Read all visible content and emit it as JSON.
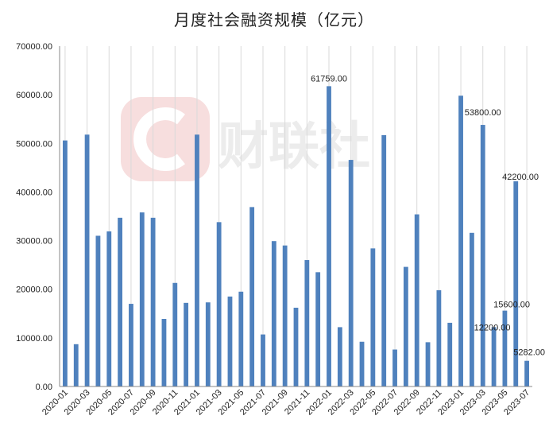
{
  "chart_data": {
    "type": "bar",
    "title": "月度社会融资规模（亿元）",
    "xlabel": "",
    "ylabel": "",
    "ylim": [
      0,
      70000
    ],
    "yticks": [
      "0.00",
      "10000.00",
      "20000.00",
      "30000.00",
      "40000.00",
      "50000.00",
      "60000.00",
      "70000.00"
    ],
    "grid": "vertical",
    "legend": "none",
    "bar_color": "#4f81bd",
    "watermark": "财联社",
    "categories": [
      "2020-01",
      "2020-02",
      "2020-03",
      "2020-04",
      "2020-05",
      "2020-06",
      "2020-07",
      "2020-08",
      "2020-09",
      "2020-10",
      "2020-11",
      "2020-12",
      "2021-01",
      "2021-02",
      "2021-03",
      "2021-04",
      "2021-05",
      "2021-06",
      "2021-07",
      "2021-08",
      "2021-09",
      "2021-10",
      "2021-11",
      "2021-12",
      "2022-01",
      "2022-02",
      "2022-03",
      "2022-04",
      "2022-05",
      "2022-06",
      "2022-07",
      "2022-08",
      "2022-09",
      "2022-10",
      "2022-11",
      "2022-12",
      "2023-01",
      "2023-02",
      "2023-03",
      "2023-04",
      "2023-05",
      "2023-06",
      "2023-07"
    ],
    "xtick_labels": [
      "2020-01",
      "2020-03",
      "2020-05",
      "2020-07",
      "2020-09",
      "2020-11",
      "2021-01",
      "2021-03",
      "2021-05",
      "2021-07",
      "2021-09",
      "2021-11",
      "2022-01",
      "2022-03",
      "2022-05",
      "2022-07",
      "2022-09",
      "2022-11",
      "2023-01",
      "2023-03",
      "2023-05",
      "2023-07"
    ],
    "values": [
      50600,
      8700,
      51800,
      31000,
      31900,
      34700,
      17000,
      35800,
      34700,
      13900,
      21300,
      17200,
      51800,
      17300,
      33800,
      18500,
      19500,
      36900,
      10700,
      29900,
      29000,
      16200,
      26000,
      23500,
      61759,
      12200,
      46600,
      9200,
      28400,
      51700,
      7600,
      24600,
      35400,
      9100,
      19800,
      13100,
      59800,
      31600,
      53800,
      12200,
      15600,
      42200,
      5282
    ],
    "data_labels": [
      {
        "category": "2022-01",
        "text": "61759.00"
      },
      {
        "category": "2023-03",
        "text": "53800.00"
      },
      {
        "category": "2023-04",
        "text": "12200.00"
      },
      {
        "category": "2023-05",
        "text": "15600.00"
      },
      {
        "category": "2023-06",
        "text": "42200.00"
      },
      {
        "category": "2023-07",
        "text": "5282.00"
      }
    ]
  }
}
